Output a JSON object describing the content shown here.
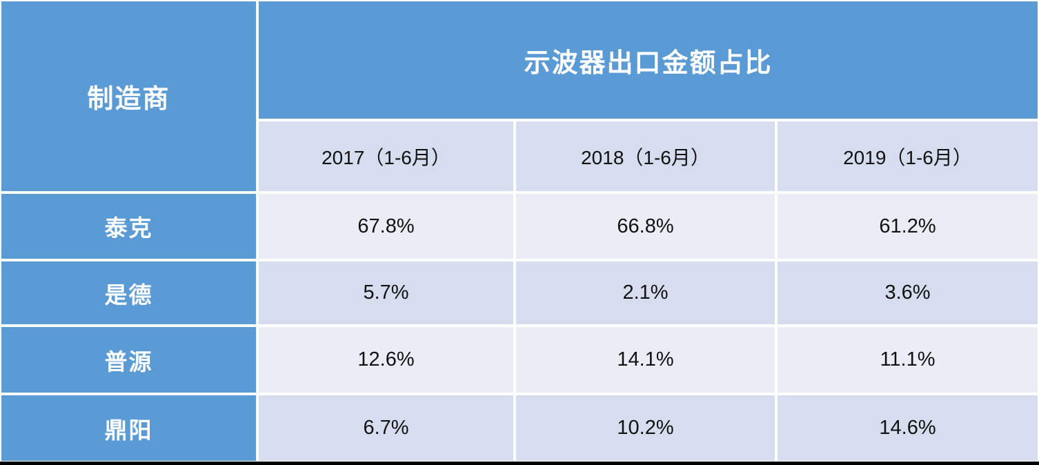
{
  "colors": {
    "header_blue": "#5B9BD5",
    "row_band_light": "#EAEDF6",
    "row_band_shaded": "#D5DDEE",
    "gridline_white": "#FFFFFF",
    "bottom_border": "#000000",
    "header_text": "#FFFFFF",
    "cell_text": "#111111"
  },
  "table": {
    "corner_header": "制造商",
    "group_header": "示波器出口金额占比",
    "column_headers": [
      "2017（1-6月）",
      "2018（1-6月）",
      "2019（1-6月）"
    ],
    "rows": [
      {
        "label": "泰克",
        "values": [
          "67.8%",
          "66.8%",
          "61.2%"
        ]
      },
      {
        "label": "是德",
        "values": [
          "5.7%",
          "2.1%",
          "3.6%"
        ]
      },
      {
        "label": "普源",
        "values": [
          "12.6%",
          "14.1%",
          "11.1%"
        ]
      },
      {
        "label": "鼎阳",
        "values": [
          "6.7%",
          "10.2%",
          "14.6%"
        ]
      }
    ]
  },
  "chart_data": {
    "type": "table",
    "title": "示波器出口金额占比",
    "row_header": "制造商",
    "categories": [
      "2017（1-6月）",
      "2018（1-6月）",
      "2019（1-6月）"
    ],
    "series": [
      {
        "name": "泰克",
        "values": [
          67.8,
          66.8,
          61.2
        ]
      },
      {
        "name": "是德",
        "values": [
          5.7,
          2.1,
          3.6
        ]
      },
      {
        "name": "普源",
        "values": [
          12.6,
          14.1,
          11.1
        ]
      },
      {
        "name": "鼎阳",
        "values": [
          6.7,
          10.2,
          14.6
        ]
      }
    ],
    "unit": "%"
  }
}
